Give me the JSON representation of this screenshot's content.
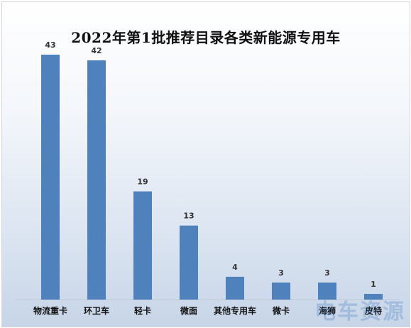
{
  "chart_data": {
    "type": "bar",
    "title": "2022年第1批推荐目录各类新能源专用车",
    "categories": [
      "物流重卡",
      "环卫车",
      "轻卡",
      "微面",
      "其他专用车",
      "微卡",
      "海狮",
      "皮特"
    ],
    "values": [
      43,
      42,
      19,
      13,
      4,
      3,
      3,
      1
    ],
    "ylim": [
      0,
      43
    ],
    "grid": false,
    "legend": "none",
    "data_labels": true,
    "bar_color": "#4f81bd"
  },
  "watermark": "电车资源"
}
